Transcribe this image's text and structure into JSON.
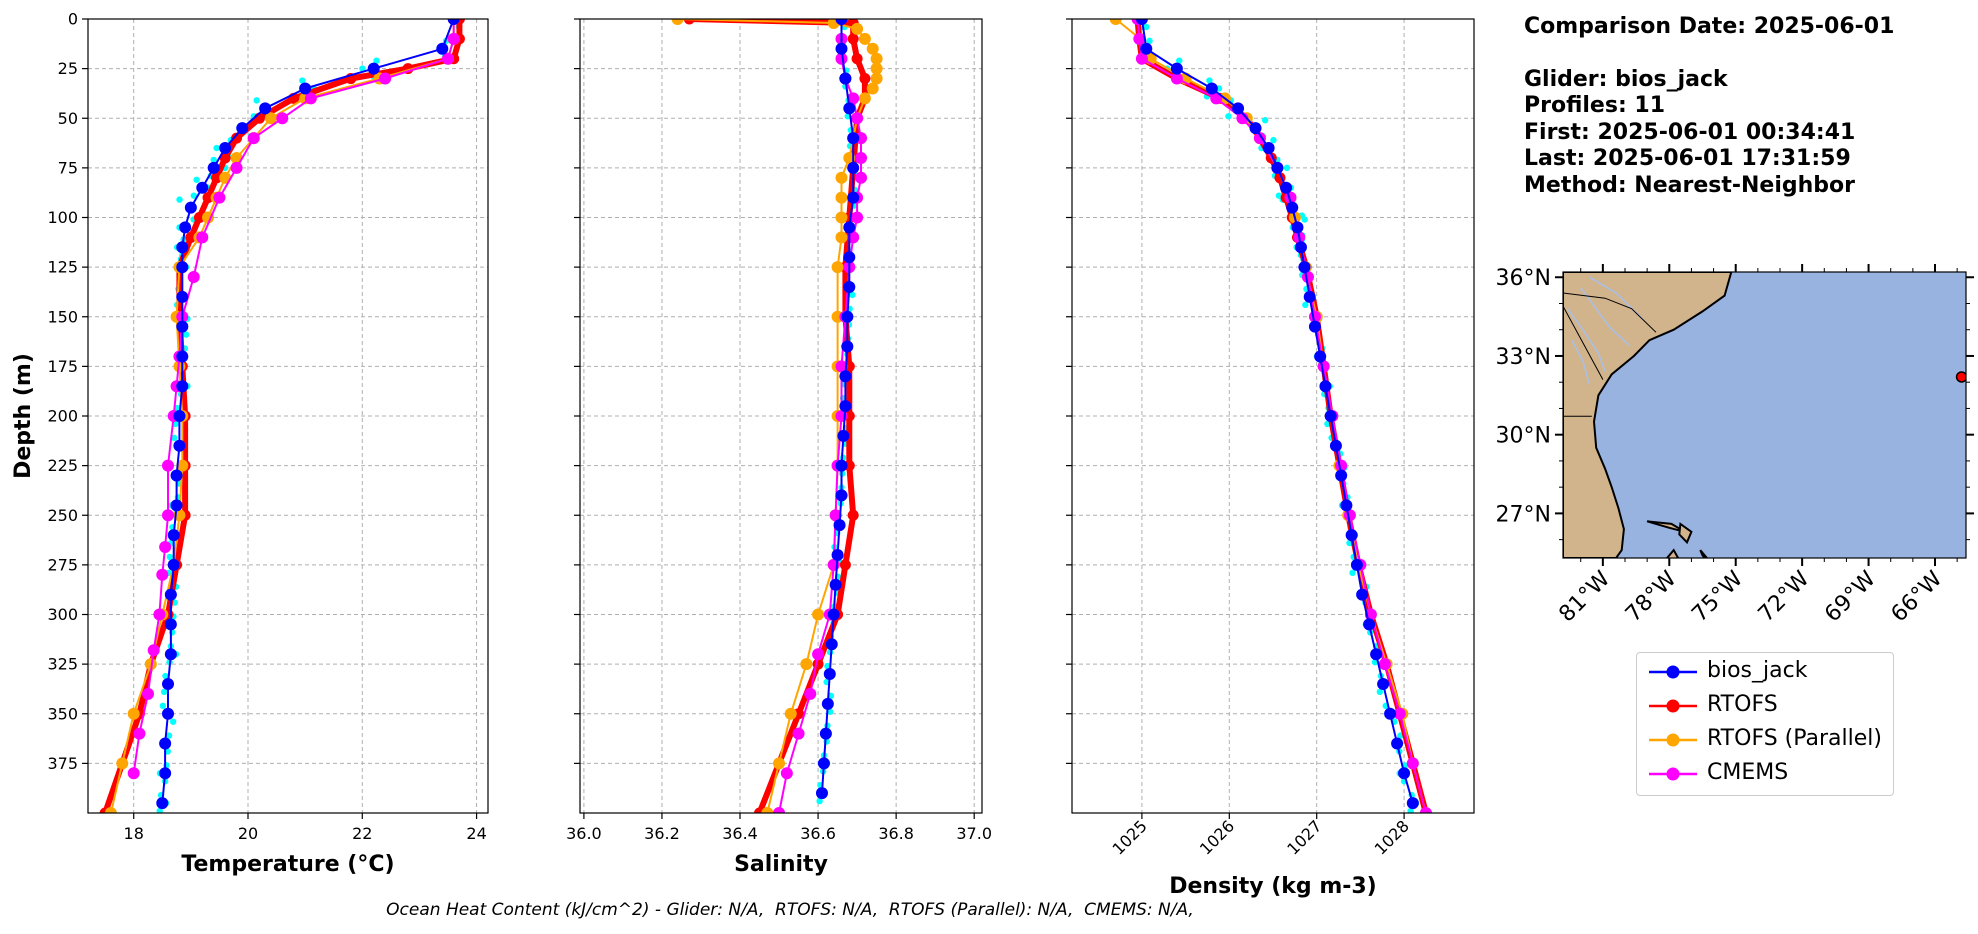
{
  "info": {
    "title": "Comparison Date: 2025-06-01",
    "lines": [
      "Glider: bios_jack",
      "Profiles: 11",
      "First: 2025-06-01 00:34:41",
      "Last: 2025-06-01 17:31:59",
      "Method: Nearest-Neighbor"
    ]
  },
  "caption": "Ocean Heat Content (kJ/cm^2) - Glider: N/A,  RTOFS: N/A,  RTOFS (Parallel): N/A,  CMEMS: N/A,",
  "colors": {
    "bios_jack": "#0000ff",
    "glider_raw": "#00ffff",
    "RTOFS": "#ff0000",
    "RTOFS (Parallel)": "#ffa500",
    "CMEMS": "#ff00ff",
    "land": "#d2b48c",
    "ocean": "#99b3e0"
  },
  "legend": {
    "entries": [
      {
        "label": "bios_jack",
        "color": "#0000ff"
      },
      {
        "label": "RTOFS",
        "color": "#ff0000"
      },
      {
        "label": "RTOFS (Parallel)",
        "color": "#ffa500"
      },
      {
        "label": "CMEMS",
        "color": "#ff00ff"
      }
    ]
  },
  "chart_data": [
    {
      "type": "line",
      "xlabel": "Temperature ($^{o}C$)",
      "xlabel_text": "Temperature (°C)",
      "ylabel": "Depth (m)",
      "xlim": [
        17.2,
        24.2
      ],
      "ylim": [
        400,
        0
      ],
      "xticks": [
        18,
        20,
        22,
        24
      ],
      "yticks": [
        0,
        25,
        50,
        75,
        100,
        125,
        150,
        175,
        200,
        225,
        250,
        275,
        300,
        325,
        350,
        375
      ],
      "grid": true,
      "series": [
        {
          "name": "bios_jack",
          "color": "#0000ff",
          "depth": [
            0,
            15,
            25,
            35,
            45,
            55,
            65,
            75,
            85,
            95,
            105,
            115,
            125,
            140,
            155,
            170,
            185,
            200,
            215,
            230,
            245,
            260,
            275,
            290,
            305,
            320,
            335,
            350,
            365,
            380,
            395
          ],
          "values": [
            23.6,
            23.4,
            22.2,
            21.0,
            20.3,
            19.9,
            19.6,
            19.4,
            19.2,
            19.0,
            18.9,
            18.85,
            18.85,
            18.85,
            18.85,
            18.85,
            18.85,
            18.8,
            18.8,
            18.75,
            18.75,
            18.7,
            18.7,
            18.65,
            18.65,
            18.65,
            18.6,
            18.6,
            18.55,
            18.55,
            18.5
          ]
        },
        {
          "name": "RTOFS",
          "color": "#ff0000",
          "depth": [
            0,
            10,
            20,
            25,
            30,
            40,
            50,
            60,
            70,
            80,
            90,
            100,
            110,
            125,
            150,
            175,
            200,
            225,
            250,
            275,
            300,
            325,
            350,
            375,
            400
          ],
          "values": [
            23.7,
            23.7,
            23.6,
            22.8,
            21.8,
            20.8,
            20.2,
            19.8,
            19.6,
            19.45,
            19.3,
            19.15,
            19.0,
            18.8,
            18.8,
            18.85,
            18.9,
            18.9,
            18.9,
            18.75,
            18.6,
            18.3,
            18.1,
            17.8,
            17.5
          ]
        },
        {
          "name": "RTOFS (Parallel)",
          "color": "#ffa500",
          "depth": [
            0,
            10,
            20,
            30,
            40,
            50,
            60,
            70,
            80,
            90,
            100,
            110,
            125,
            150,
            175,
            200,
            225,
            250,
            275,
            300,
            325,
            350,
            375,
            400
          ],
          "values": [
            23.6,
            23.6,
            23.5,
            22.3,
            21.0,
            20.4,
            20.1,
            19.8,
            19.6,
            19.45,
            19.3,
            19.15,
            18.8,
            18.75,
            18.8,
            18.85,
            18.85,
            18.8,
            18.7,
            18.5,
            18.3,
            18.0,
            17.8,
            17.6
          ]
        },
        {
          "name": "CMEMS",
          "color": "#ff00ff",
          "depth": [
            0,
            10,
            20,
            30,
            40,
            50,
            60,
            75,
            90,
            110,
            130,
            150,
            170,
            185,
            200,
            225,
            250,
            266,
            280,
            300,
            318,
            340,
            360,
            380
          ],
          "values": [
            23.6,
            23.6,
            23.5,
            22.4,
            21.1,
            20.6,
            20.1,
            19.8,
            19.5,
            19.2,
            19.05,
            18.85,
            18.8,
            18.75,
            18.7,
            18.6,
            18.6,
            18.55,
            18.5,
            18.45,
            18.35,
            18.25,
            18.1,
            18.0
          ]
        }
      ]
    },
    {
      "type": "line",
      "xlabel": "Salinity",
      "xlim": [
        35.99,
        37.02
      ],
      "ylim": [
        400,
        0
      ],
      "xticks": [
        36.0,
        36.2,
        36.4,
        36.6,
        36.8,
        37.0
      ],
      "grid": true,
      "series": [
        {
          "name": "bios_jack",
          "color": "#0000ff",
          "depth": [
            0,
            15,
            30,
            45,
            60,
            75,
            90,
            105,
            120,
            135,
            150,
            165,
            180,
            195,
            210,
            225,
            240,
            255,
            270,
            285,
            300,
            315,
            330,
            345,
            360,
            375,
            390
          ],
          "values": [
            36.66,
            36.66,
            36.67,
            36.68,
            36.69,
            36.69,
            36.69,
            36.68,
            36.68,
            36.68,
            36.675,
            36.675,
            36.67,
            36.67,
            36.665,
            36.66,
            36.66,
            36.655,
            36.65,
            36.645,
            36.64,
            36.635,
            36.63,
            36.625,
            36.62,
            36.615,
            36.61
          ]
        },
        {
          "name": "RTOFS",
          "color": "#ff0000",
          "depth": [
            0,
            2,
            10,
            20,
            30,
            40,
            50,
            75,
            100,
            125,
            150,
            175,
            200,
            225,
            250,
            275,
            300,
            325,
            350,
            375,
            400
          ],
          "values": [
            36.27,
            36.69,
            36.69,
            36.7,
            36.72,
            36.72,
            36.7,
            36.69,
            36.68,
            36.67,
            36.67,
            36.68,
            36.68,
            36.68,
            36.69,
            36.67,
            36.65,
            36.6,
            36.55,
            36.5,
            36.45
          ]
        },
        {
          "name": "RTOFS (Parallel)",
          "color": "#ffa500",
          "depth": [
            0,
            2,
            5,
            10,
            15,
            20,
            25,
            30,
            35,
            40,
            50,
            60,
            70,
            80,
            90,
            100,
            110,
            125,
            150,
            175,
            200,
            225,
            250,
            275,
            300,
            325,
            350,
            375,
            400
          ],
          "values": [
            36.24,
            36.64,
            36.7,
            36.72,
            36.74,
            36.75,
            36.75,
            36.75,
            36.74,
            36.72,
            36.7,
            36.69,
            36.68,
            36.66,
            36.66,
            36.66,
            36.66,
            36.65,
            36.65,
            36.65,
            36.65,
            36.65,
            36.645,
            36.64,
            36.6,
            36.57,
            36.53,
            36.5,
            36.47
          ]
        },
        {
          "name": "CMEMS",
          "color": "#ff00ff",
          "depth": [
            0,
            10,
            20,
            30,
            40,
            50,
            60,
            70,
            80,
            90,
            100,
            110,
            125,
            150,
            175,
            200,
            225,
            250,
            275,
            300,
            320,
            340,
            360,
            380,
            400
          ],
          "values": [
            36.66,
            36.66,
            36.66,
            36.67,
            36.69,
            36.7,
            36.71,
            36.71,
            36.71,
            36.7,
            36.7,
            36.69,
            36.68,
            36.67,
            36.66,
            36.66,
            36.65,
            36.645,
            36.64,
            36.63,
            36.6,
            36.58,
            36.55,
            36.52,
            36.5
          ]
        }
      ]
    },
    {
      "type": "line",
      "xlabel": "Density (kg m-3)",
      "xlim": [
        1024.2,
        1028.8
      ],
      "ylim": [
        400,
        0
      ],
      "xticks": [
        1025,
        1026,
        1027,
        1028
      ],
      "grid": true,
      "series": [
        {
          "name": "bios_jack",
          "color": "#0000ff",
          "depth": [
            0,
            15,
            25,
            35,
            45,
            55,
            65,
            75,
            85,
            95,
            105,
            115,
            125,
            140,
            155,
            170,
            185,
            200,
            215,
            230,
            245,
            260,
            275,
            290,
            305,
            320,
            335,
            350,
            365,
            380,
            395
          ],
          "values": [
            1025.0,
            1025.05,
            1025.4,
            1025.8,
            1026.1,
            1026.3,
            1026.45,
            1026.55,
            1026.65,
            1026.72,
            1026.78,
            1026.82,
            1026.86,
            1026.92,
            1026.98,
            1027.04,
            1027.1,
            1027.16,
            1027.22,
            1027.28,
            1027.34,
            1027.4,
            1027.46,
            1027.52,
            1027.6,
            1027.68,
            1027.76,
            1027.84,
            1027.92,
            1028.0,
            1028.1
          ]
        },
        {
          "name": "RTOFS",
          "color": "#ff0000",
          "depth": [
            0,
            10,
            20,
            30,
            40,
            50,
            60,
            70,
            80,
            90,
            100,
            110,
            125,
            150,
            175,
            200,
            225,
            250,
            275,
            300,
            325,
            350,
            375,
            400
          ],
          "values": [
            1024.95,
            1024.97,
            1025.0,
            1025.4,
            1025.9,
            1026.2,
            1026.35,
            1026.48,
            1026.58,
            1026.65,
            1026.72,
            1026.78,
            1026.88,
            1027.0,
            1027.08,
            1027.16,
            1027.26,
            1027.36,
            1027.48,
            1027.62,
            1027.8,
            1027.95,
            1028.1,
            1028.25
          ]
        },
        {
          "name": "RTOFS (Parallel)",
          "color": "#ffa500",
          "depth": [
            0,
            10,
            20,
            30,
            40,
            50,
            60,
            75,
            90,
            100,
            125,
            150,
            175,
            200,
            225,
            250,
            275,
            300,
            325,
            350,
            375,
            400
          ],
          "values": [
            1024.7,
            1024.98,
            1025.1,
            1025.5,
            1025.95,
            1026.2,
            1026.35,
            1026.55,
            1026.7,
            1026.75,
            1026.87,
            1027.0,
            1027.08,
            1027.16,
            1027.26,
            1027.36,
            1027.48,
            1027.62,
            1027.8,
            1027.98,
            1028.1,
            1028.25
          ]
        },
        {
          "name": "CMEMS",
          "color": "#ff00ff",
          "depth": [
            0,
            10,
            20,
            30,
            40,
            50,
            60,
            75,
            90,
            110,
            130,
            150,
            175,
            200,
            225,
            250,
            275,
            300,
            325,
            350,
            375,
            400
          ],
          "values": [
            1024.95,
            1024.97,
            1025.0,
            1025.4,
            1025.85,
            1026.15,
            1026.35,
            1026.55,
            1026.7,
            1026.8,
            1026.9,
            1026.98,
            1027.08,
            1027.18,
            1027.28,
            1027.38,
            1027.5,
            1027.62,
            1027.78,
            1027.95,
            1028.1,
            1028.25
          ]
        }
      ]
    },
    {
      "type": "map",
      "lat_ticks": [
        "36°N",
        "33°N",
        "30°N",
        "27°N"
      ],
      "lon_ticks": [
        "81°W",
        "78°W",
        "75°W",
        "72°W",
        "69°W",
        "66°W"
      ],
      "lat_range": [
        25.3,
        36.2
      ],
      "lon_range": [
        -82.8,
        -64.6
      ],
      "marker": {
        "lat": 32.2,
        "lon": -64.8,
        "color": "#ff0000"
      }
    }
  ]
}
